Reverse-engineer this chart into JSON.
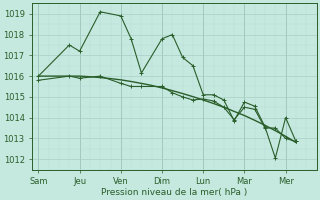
{
  "bg_color": "#c5e8df",
  "grid_major_color": "#a8cfc7",
  "grid_minor_color": "#b8ddd6",
  "line_color": "#2a5e2a",
  "xlabel": "Pression niveau de la mer( hPa )",
  "xtick_labels": [
    "Sam",
    "Jeu",
    "Ven",
    "Dim",
    "Lun",
    "Mar",
    "Mer"
  ],
  "xtick_positions": [
    0,
    2,
    4,
    6,
    8,
    10,
    12
  ],
  "ylim": [
    1011.5,
    1019.5
  ],
  "yticks": [
    1012,
    1013,
    1014,
    1015,
    1016,
    1017,
    1018,
    1019
  ],
  "xlim": [
    -0.3,
    13.5
  ],
  "series_upper": {
    "x": [
      0,
      1.5,
      2.0,
      3.0,
      4.0,
      4.5,
      5.0,
      6.0,
      6.5,
      7.0,
      7.5,
      8.0,
      8.5,
      9.0,
      9.5,
      10.0,
      10.5,
      11.0,
      11.5,
      12.0,
      12.5
    ],
    "y": [
      1016.0,
      1017.5,
      1017.2,
      1019.1,
      1018.9,
      1017.8,
      1016.15,
      1017.8,
      1018.0,
      1016.9,
      1016.5,
      1015.1,
      1015.1,
      1014.85,
      1013.85,
      1014.75,
      1014.55,
      1013.55,
      1012.05,
      1014.0,
      1012.85
    ]
  },
  "series_trend": {
    "x": [
      0,
      0.5,
      1,
      1.5,
      2,
      2.5,
      3,
      3.5,
      4,
      4.5,
      5,
      5.5,
      6,
      6.5,
      7,
      7.5,
      8,
      8.5,
      9,
      9.5,
      10,
      10.5,
      11,
      11.5,
      12,
      12.5
    ],
    "y": [
      1016.0,
      1016.0,
      1016.0,
      1016.0,
      1016.0,
      1015.97,
      1015.93,
      1015.88,
      1015.82,
      1015.74,
      1015.65,
      1015.55,
      1015.43,
      1015.3,
      1015.16,
      1015.01,
      1014.85,
      1014.68,
      1014.5,
      1014.3,
      1014.1,
      1013.87,
      1013.63,
      1013.37,
      1013.1,
      1012.8
    ]
  },
  "series_lower": {
    "x": [
      0,
      1.5,
      2.0,
      3.0,
      4.0,
      4.5,
      5.0,
      6.0,
      6.5,
      7.0,
      7.5,
      8.0,
      8.5,
      9.0,
      9.5,
      10.0,
      10.5,
      11.0,
      11.5,
      12.0,
      12.5
    ],
    "y": [
      1015.8,
      1016.0,
      1015.9,
      1016.0,
      1015.65,
      1015.5,
      1015.5,
      1015.5,
      1015.2,
      1015.0,
      1014.85,
      1014.9,
      1014.8,
      1014.5,
      1013.9,
      1014.5,
      1014.4,
      1013.5,
      1013.5,
      1013.0,
      1012.85
    ]
  }
}
